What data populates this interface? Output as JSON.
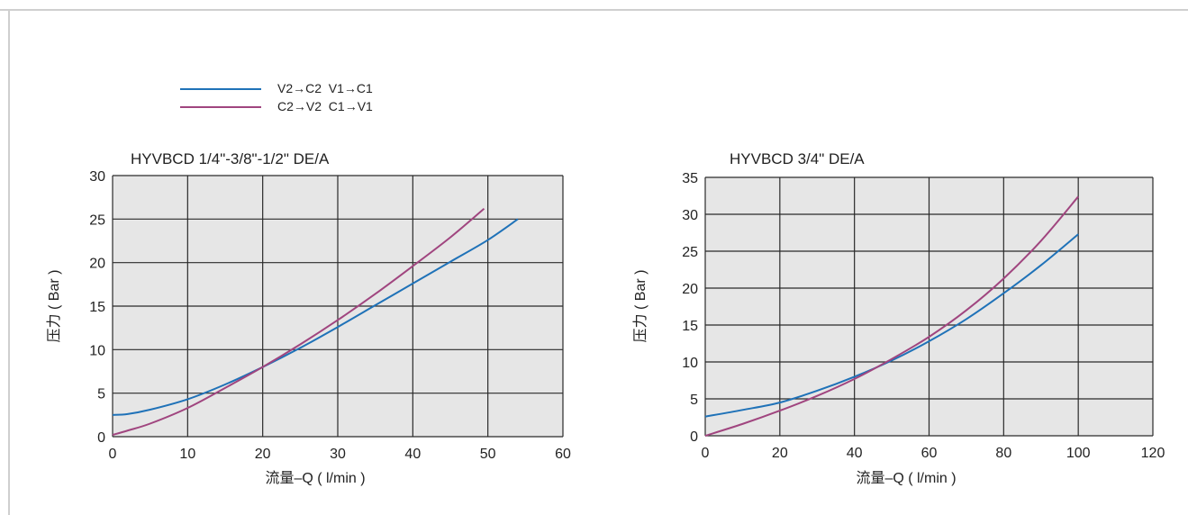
{
  "legend": [
    {
      "label": "V2→C2  V1→C1",
      "color": "#1f72b8"
    },
    {
      "label": "C2→V2  C1→V1",
      "color": "#a0457f"
    }
  ],
  "colors": {
    "plot_bg": "#e6e6e6",
    "grid": "#2a2a2a"
  },
  "chart_data": [
    {
      "type": "line",
      "title": "HYVBCD 1/4\"-3/8\"-1/2\" DE/A",
      "xlabel": "流量–Q ( l/min )",
      "ylabel": "压力 ( Bar )",
      "xlim": [
        0,
        60
      ],
      "ylim": [
        0,
        30
      ],
      "xticks": [
        0,
        10,
        20,
        30,
        40,
        50,
        60
      ],
      "yticks": [
        0,
        5,
        10,
        15,
        20,
        25,
        30
      ],
      "grid": true,
      "series": [
        {
          "name": "V2→C2  V1→C1",
          "color": "#1f72b8",
          "x": [
            0,
            2,
            5,
            10,
            15,
            20,
            25,
            30,
            35,
            40,
            45,
            50,
            54
          ],
          "y": [
            2.5,
            2.6,
            3.1,
            4.3,
            6.0,
            8.0,
            10.2,
            12.6,
            15.1,
            17.6,
            20.1,
            22.6,
            25.0
          ]
        },
        {
          "name": "C2→V2  C1→V1",
          "color": "#a0457f",
          "x": [
            0,
            2,
            5,
            10,
            15,
            20,
            25,
            30,
            35,
            40,
            45,
            49.5
          ],
          "y": [
            0.2,
            0.7,
            1.5,
            3.3,
            5.6,
            8.0,
            10.6,
            13.4,
            16.4,
            19.6,
            22.9,
            26.2
          ]
        }
      ]
    },
    {
      "type": "line",
      "title": "HYVBCD 3/4\" DE/A",
      "xlabel": "流量–Q ( l/min )",
      "ylabel": "压力 ( Bar )",
      "xlim": [
        0,
        120
      ],
      "ylim": [
        0,
        35
      ],
      "xticks": [
        0,
        20,
        40,
        60,
        80,
        100,
        120
      ],
      "yticks": [
        0,
        5,
        10,
        15,
        20,
        25,
        30,
        35
      ],
      "grid": true,
      "series": [
        {
          "name": "V2→C2  V1→C1",
          "color": "#1f72b8",
          "x": [
            0,
            10,
            20,
            30,
            40,
            50,
            60,
            70,
            80,
            90,
            100
          ],
          "y": [
            2.6,
            3.5,
            4.5,
            6.1,
            8.0,
            10.2,
            12.8,
            15.8,
            19.3,
            23.1,
            27.3
          ]
        },
        {
          "name": "C2→V2  C1→V1",
          "color": "#a0457f",
          "x": [
            0,
            10,
            20,
            30,
            40,
            50,
            60,
            70,
            80,
            90,
            100
          ],
          "y": [
            0,
            1.6,
            3.4,
            5.4,
            7.7,
            10.4,
            13.4,
            17.0,
            21.3,
            26.4,
            32.4
          ]
        }
      ]
    }
  ]
}
